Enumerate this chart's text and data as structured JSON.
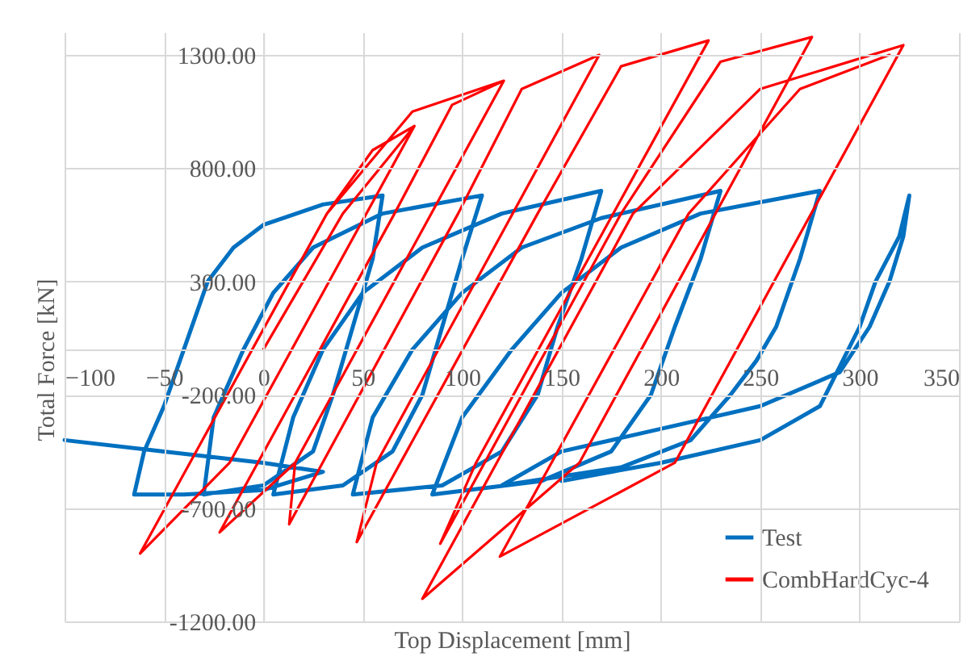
{
  "chart_data": {
    "type": "line",
    "xlabel": "Top Displacement [mm]",
    "ylabel": "Total Force [kN]",
    "xlim": [
      -100,
      350
    ],
    "xticks": [
      -100,
      -50,
      0,
      50,
      100,
      150,
      200,
      250,
      300,
      350
    ],
    "ylim": [
      -1200,
      1400
    ],
    "yticks": [
      {
        "value": 1300,
        "label": "1300.00"
      },
      {
        "value": 800,
        "label": "800.00"
      },
      {
        "value": 300,
        "label": "300.00"
      },
      {
        "value": -200,
        "label": "-200.00"
      },
      {
        "value": -700,
        "label": "-700.00"
      },
      {
        "value": -1200,
        "label": "-1200.00"
      }
    ],
    "grid": true,
    "legend": "bottom right",
    "series": [
      {
        "name": "Test",
        "color": "#0070c0",
        "x": [
          -100,
          -50,
          0,
          30,
          0,
          -40,
          -65,
          -60,
          -50,
          -40,
          -28,
          -15,
          0,
          30,
          60,
          55,
          45,
          35,
          25,
          0,
          -30,
          -25,
          -10,
          5,
          25,
          60,
          110,
          100,
          90,
          80,
          65,
          40,
          5,
          15,
          30,
          50,
          80,
          120,
          170,
          160,
          148,
          138,
          120,
          90,
          45,
          55,
          75,
          100,
          130,
          170,
          230,
          220,
          207,
          195,
          175,
          140,
          85,
          100,
          125,
          150,
          180,
          220,
          280,
          270,
          258,
          248,
          235,
          215,
          180,
          120,
          150,
          200,
          250,
          290,
          305,
          315,
          322,
          325,
          320,
          308,
          300,
          280,
          250,
          200,
          150
        ],
        "values": [
          -400,
          -450,
          -500,
          -540,
          -620,
          -640,
          -640,
          -450,
          -250,
          0,
          300,
          450,
          550,
          640,
          680,
          400,
          100,
          -200,
          -450,
          -600,
          -640,
          -300,
          0,
          250,
          450,
          600,
          680,
          400,
          100,
          -200,
          -450,
          -600,
          -640,
          -300,
          0,
          250,
          450,
          600,
          700,
          400,
          100,
          -200,
          -450,
          -600,
          -640,
          -300,
          0,
          250,
          450,
          580,
          700,
          400,
          100,
          -200,
          -450,
          -580,
          -640,
          -300,
          0,
          250,
          450,
          600,
          700,
          400,
          100,
          -50,
          -200,
          -400,
          -520,
          -600,
          -450,
          -350,
          -250,
          -100,
          100,
          300,
          500,
          680,
          500,
          300,
          100,
          -250,
          -400,
          -500,
          -580
        ]
      },
      {
        "name": "CombHardCyc-4",
        "color": "#ff0000",
        "x": [
          0,
          40,
          76,
          -17,
          -62,
          32,
          55,
          76,
          -17,
          -62,
          32,
          75,
          121,
          16,
          -22,
          66,
          95,
          121,
          16,
          13,
          98,
          130,
          169,
          57,
          47,
          138,
          180,
          224,
          107,
          89,
          180,
          230,
          276,
          159,
          80,
          186,
          250,
          322,
          207,
          119,
          214,
          270,
          315
        ],
        "values": [
          0,
          600,
          986,
          -500,
          -900,
          600,
          880,
          986,
          -500,
          -900,
          600,
          1050,
          1186,
          -500,
          -807,
          600,
          1080,
          1186,
          -500,
          -771,
          600,
          1150,
          1300,
          -500,
          -850,
          600,
          1250,
          1364,
          -500,
          -857,
          600,
          1270,
          1379,
          -500,
          -1100,
          600,
          1150,
          1343,
          -500,
          -914,
          600,
          1150,
          1300
        ]
      }
    ]
  }
}
